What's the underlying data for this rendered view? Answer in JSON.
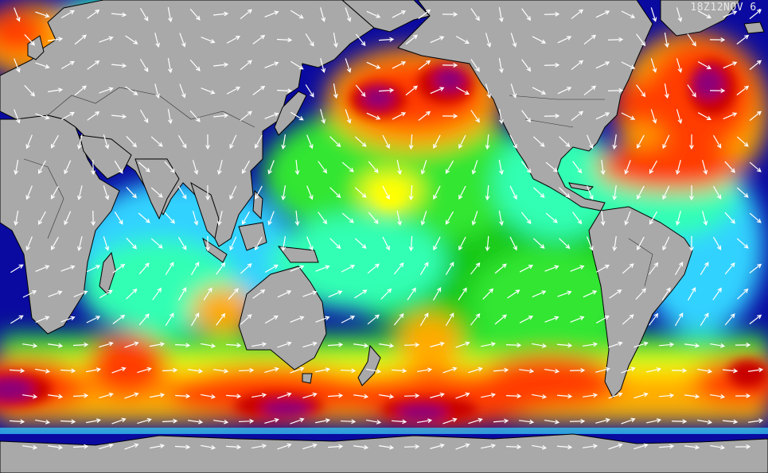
{
  "map": {
    "stamp": "18Z12NOV 6.",
    "colors": {
      "ocean_calm": "#0a0aa0",
      "land": "#a9a9a9",
      "coast": "#000000",
      "arrows": "#ffffff",
      "scale": [
        "#0000c8",
        "#1e78ff",
        "#32d2ff",
        "#32ffb4",
        "#32e632",
        "#14c814",
        "#ffff00",
        "#ffaa00",
        "#ff3c00",
        "#c80000",
        "#8c0078"
      ]
    }
  }
}
